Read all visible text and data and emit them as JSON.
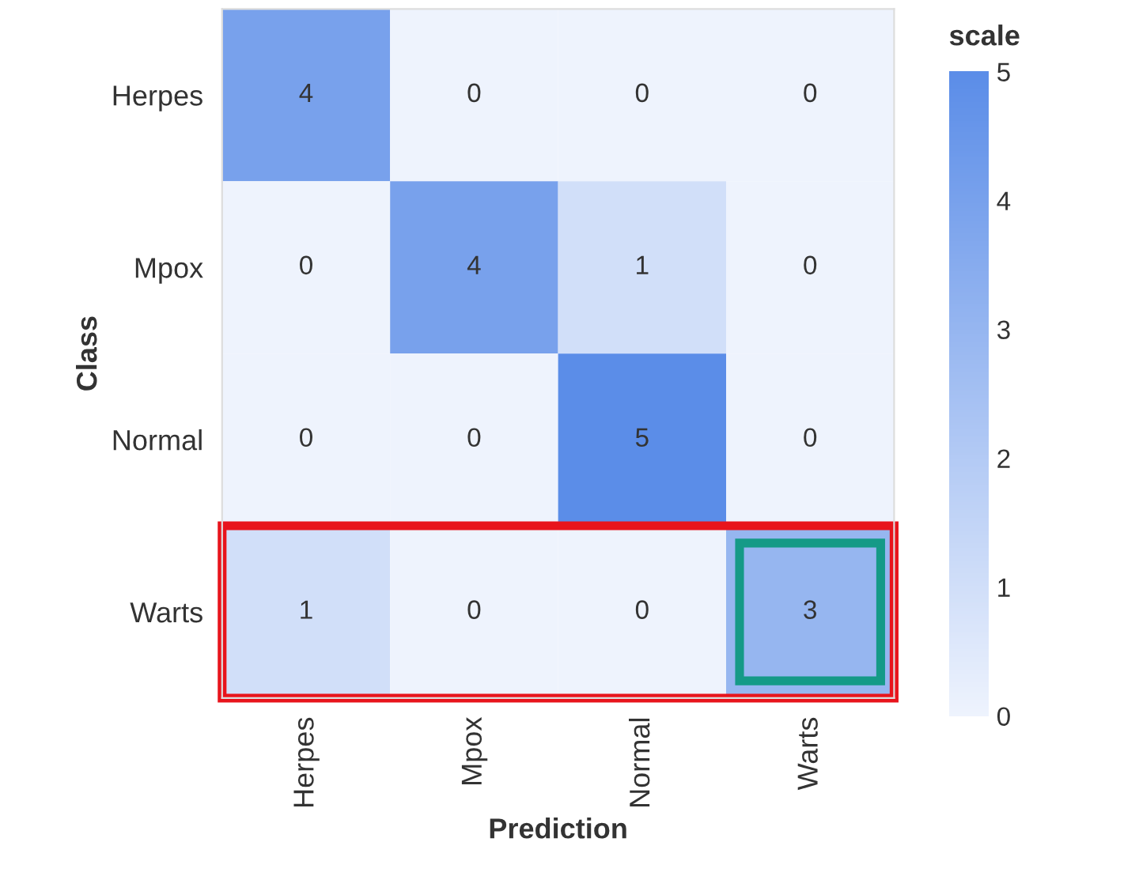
{
  "chart_data": {
    "type": "heatmap",
    "xlabel": "Prediction",
    "ylabel": "Class",
    "clabel": "scale",
    "categories": [
      "Herpes",
      "Mpox",
      "Normal",
      "Warts"
    ],
    "y_categories": [
      "Herpes",
      "Mpox",
      "Normal",
      "Warts"
    ],
    "cells": [
      [
        4,
        0,
        0,
        0
      ],
      [
        0,
        4,
        1,
        0
      ],
      [
        0,
        0,
        5,
        0
      ],
      [
        1,
        0,
        0,
        3
      ]
    ],
    "data_labels": true,
    "clim": [
      0,
      5
    ],
    "cticks": [
      0,
      1,
      2,
      3,
      4,
      5
    ],
    "colors": [
      "#eef3fd",
      "#5b8de8"
    ]
  }
}
